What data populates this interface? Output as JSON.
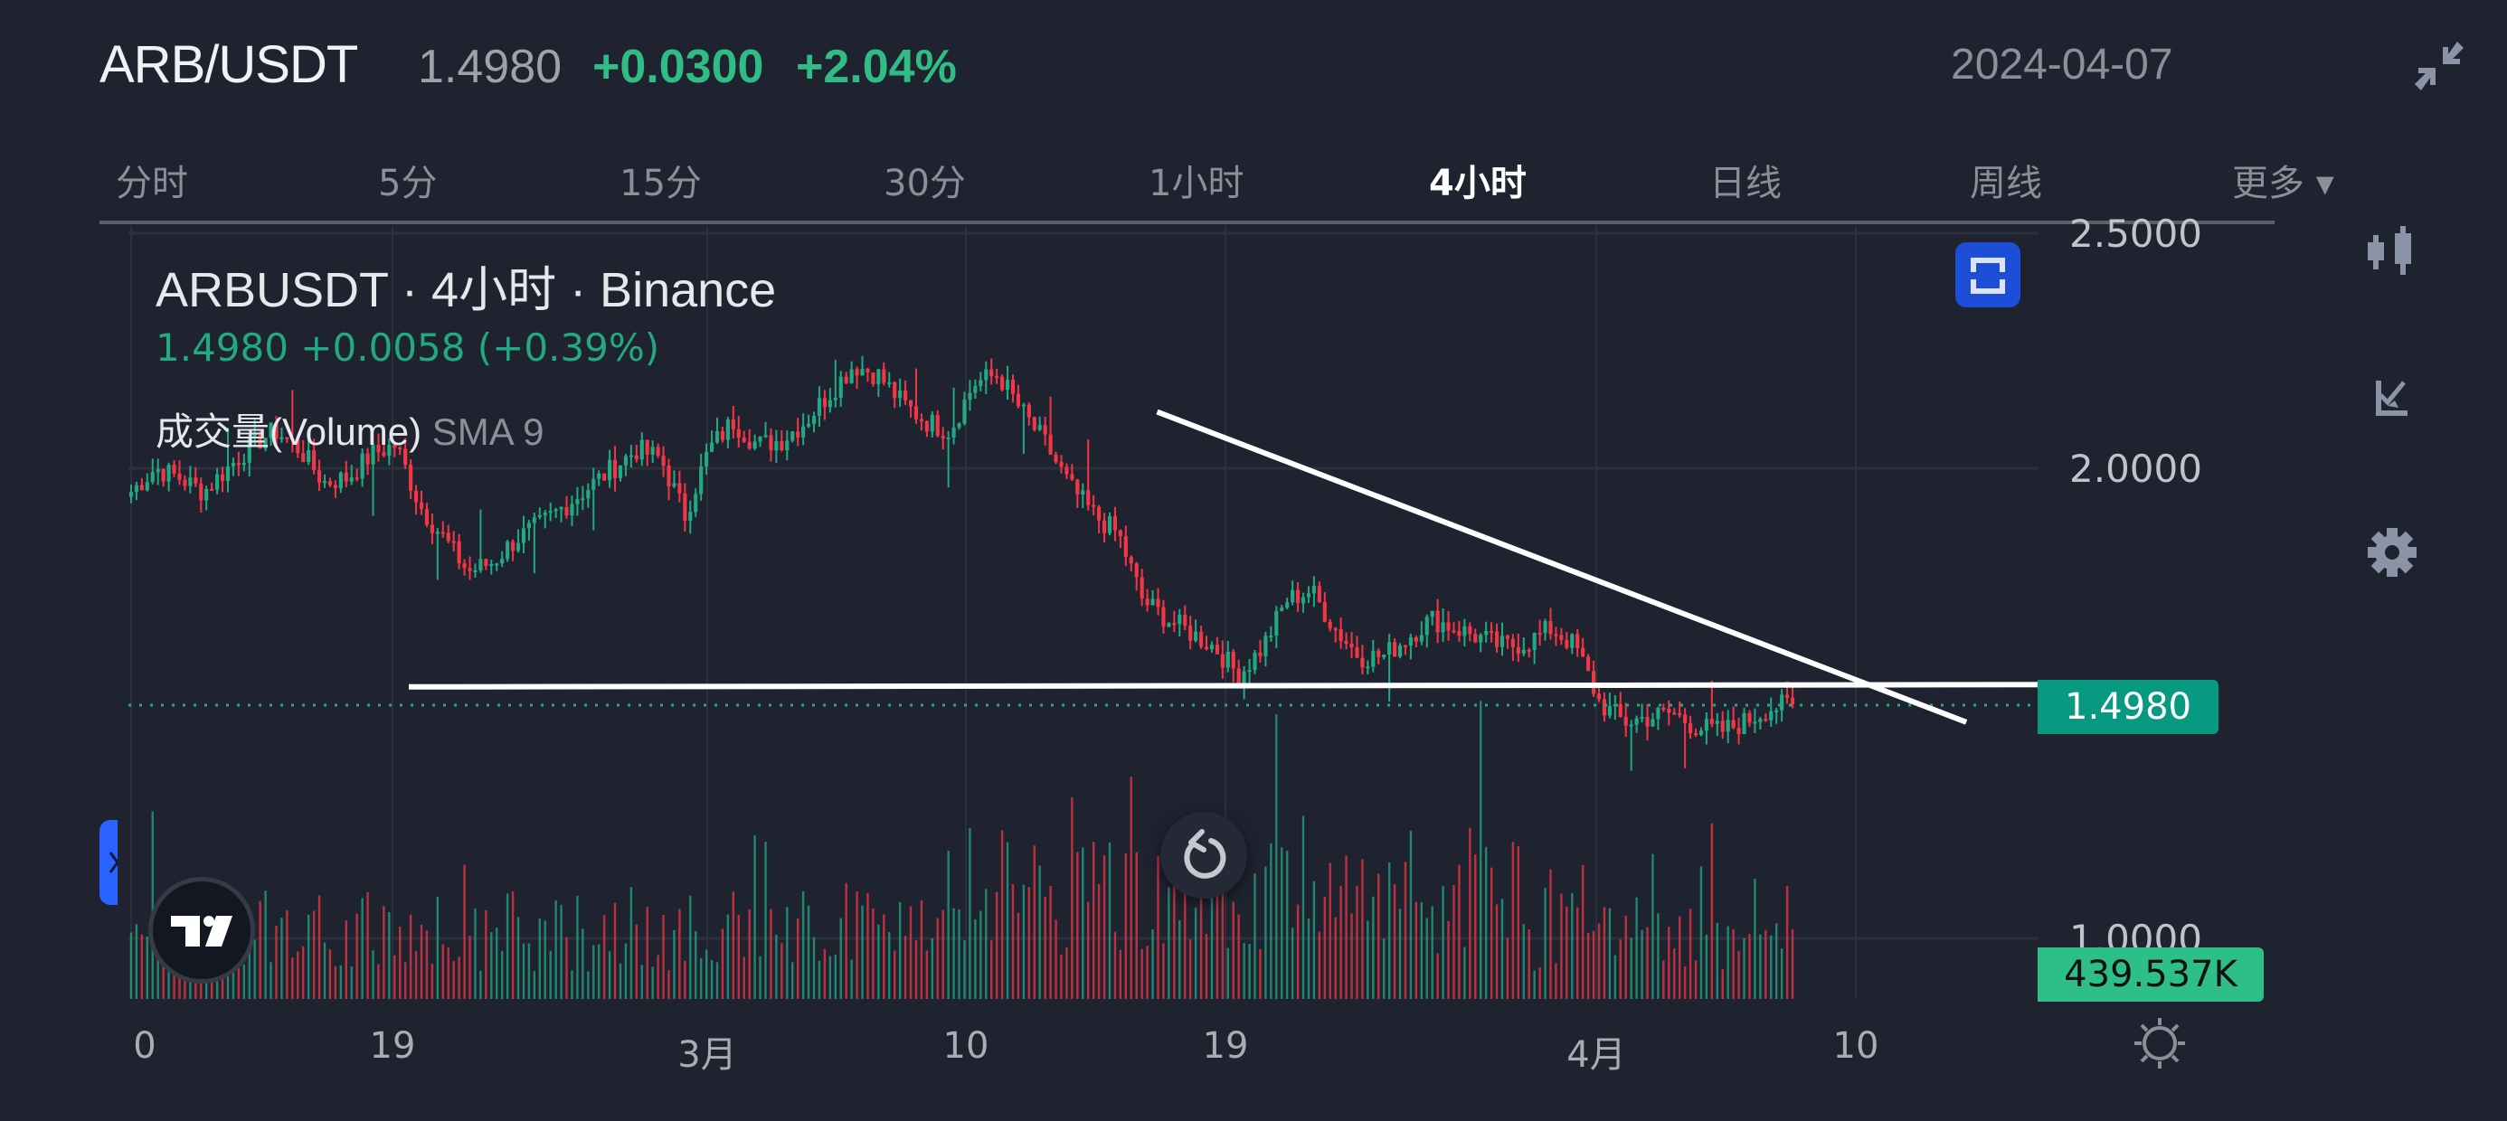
{
  "header": {
    "pair": "ARB/USDT",
    "last_price": "1.4980",
    "change": "+0.0300",
    "change_pct": "+2.04%",
    "date": "2024-04-07",
    "collapse_icon": "collapse-arrows-icon"
  },
  "tabs": [
    {
      "label": "分时",
      "active": false
    },
    {
      "label": "5分",
      "active": false
    },
    {
      "label": "15分",
      "active": false
    },
    {
      "label": "30分",
      "active": false
    },
    {
      "label": "1小时",
      "active": false
    },
    {
      "label": "4小时",
      "active": true
    },
    {
      "label": "日线",
      "active": false
    },
    {
      "label": "周线",
      "active": false
    },
    {
      "label": "更多 ▾",
      "active": false
    }
  ],
  "legend": {
    "title": "ARBUSDT · 4小时 · Binance",
    "ohlc": "1.4980  +0.0058 (+0.39%)",
    "volume_label": "成交量(Volume)",
    "volume_sma": "SMA 9"
  },
  "y_axis": {
    "labels": [
      "2.5000",
      "2.0000",
      "1.0000"
    ],
    "price_badge": "1.4980",
    "volume_badge": "439.537K"
  },
  "x_axis": {
    "labels": [
      "0",
      "19",
      "3月",
      "10",
      "19",
      "4月",
      "10"
    ]
  },
  "side_toolbar": {
    "items": [
      "candles-icon",
      "indicators-icon",
      "settings-gear-icon"
    ]
  },
  "colors": {
    "background": "#1f2330",
    "up": "#22a883",
    "down": "#f23645",
    "price_badge": "#089981",
    "volume_badge": "#2dbf87",
    "accent_blue": "#1d4ed8",
    "trendline": "#ffffff"
  },
  "chart_data": {
    "type": "candlestick",
    "title": "ARBUSDT · 4小时 · Binance",
    "symbol": "ARBUSDT",
    "interval": "4h",
    "exchange": "Binance",
    "x_ticks": [
      "0",
      "19",
      "3月",
      "10",
      "19",
      "4月",
      "10"
    ],
    "y_ticks": [
      2.5,
      2.0,
      1.0
    ],
    "ylim": [
      0.95,
      2.55
    ],
    "last_price": 1.498,
    "last_volume": "439.537K",
    "volume_indicator": "Volume SMA 9",
    "approx_close_path": [
      1.95,
      2.0,
      1.98,
      1.95,
      2.0,
      2.05,
      2.08,
      2.04,
      1.97,
      1.98,
      2.03,
      2.05,
      1.92,
      1.85,
      1.78,
      1.8,
      1.85,
      1.88,
      1.92,
      1.96,
      2.0,
      2.04,
      2.02,
      1.9,
      2.04,
      2.1,
      2.05,
      2.06,
      2.1,
      2.16,
      2.22,
      2.2,
      2.14,
      2.1,
      2.08,
      2.18,
      2.2,
      2.12,
      2.05,
      1.96,
      1.9,
      1.86,
      1.72,
      1.68,
      1.65,
      1.62,
      1.56,
      1.62,
      1.72,
      1.74,
      1.66,
      1.6,
      1.6,
      1.64,
      1.68,
      1.66,
      1.64,
      1.62,
      1.63,
      1.66,
      1.62,
      1.5,
      1.46,
      1.47,
      1.48,
      1.45,
      1.44,
      1.46,
      1.49,
      1.498
    ],
    "trendlines": [
      {
        "name": "descending-resistance",
        "from": {
          "x_frac": 0.482,
          "price": 2.12
        },
        "to": {
          "x_frac": 0.92,
          "price": 1.46
        }
      },
      {
        "name": "horizontal-support",
        "from": {
          "x_frac": 0.09,
          "price": 1.535
        },
        "to": {
          "x_frac": 0.99,
          "price": 1.54
        }
      }
    ]
  }
}
